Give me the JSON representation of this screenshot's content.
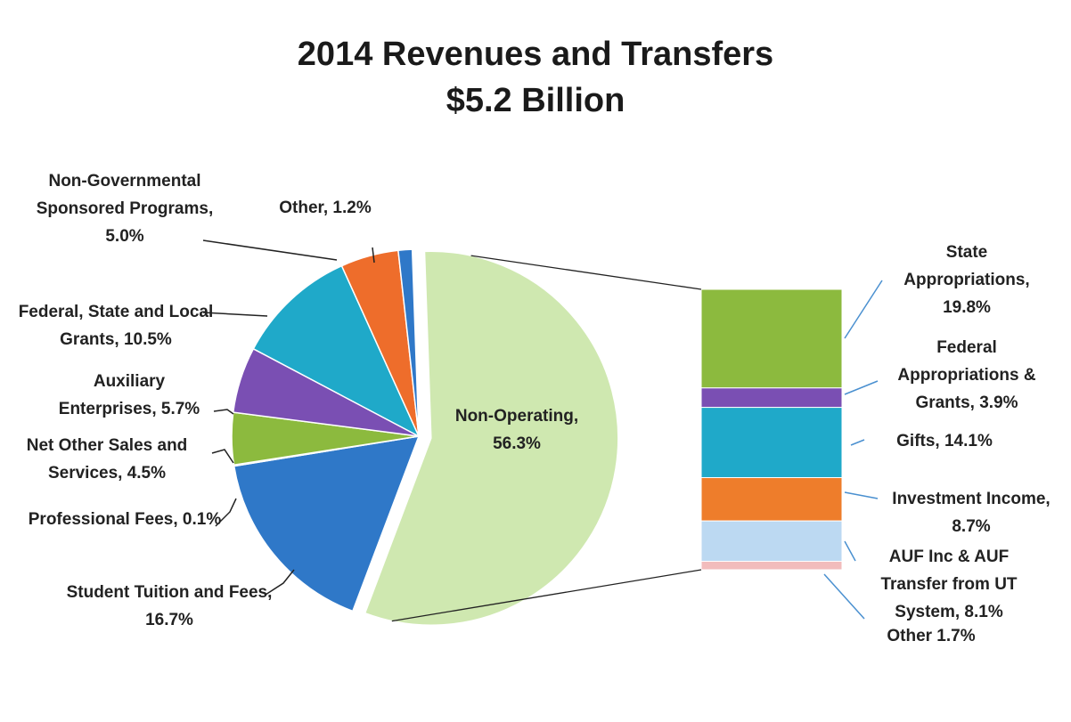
{
  "chart_data": {
    "type": "pie",
    "title": "2014 Revenues and Transfers",
    "subtitle": "$5.2 Billion",
    "values": [
      56.3,
      16.7,
      0.1,
      4.5,
      5.7,
      10.5,
      5.0,
      1.2
    ],
    "value_labels": [
      "Non-Operating, 56.3%",
      "Student Tuition and Fees, 16.7%",
      "Professional Fees, 0.1%",
      "Net Other Sales and Services, 4.5%",
      "Auxiliary Enterprises, 5.7%",
      "Federal, State and Local Grants, 10.5%",
      "Non-Governmental Sponsored Programs, 5.0%",
      "Other, 1.2%"
    ],
    "colors": [
      "#cfe8b0",
      "#2f78c8",
      "#2f78c8",
      "#8cba3e",
      "#7a4fb3",
      "#1fa9c9",
      "#ee6d2b",
      "#2f78c8"
    ],
    "breakdown": {
      "type": "bar",
      "values": [
        19.8,
        3.9,
        14.1,
        8.7,
        8.1,
        1.7
      ],
      "value_labels": [
        "State Appropriations, 19.8%",
        "Federal Appropriations & Grants, 3.9%",
        "Gifts, 14.1%",
        "Investment Income, 8.7%",
        "AUF Inc & AUF Transfer from UT System, 8.1%",
        "Other 1.7%"
      ],
      "colors": [
        "#8cba3e",
        "#7a4fb3",
        "#1fa9c9",
        "#ee7d2b",
        "#bcd9f2",
        "#f2bcbc"
      ]
    }
  }
}
